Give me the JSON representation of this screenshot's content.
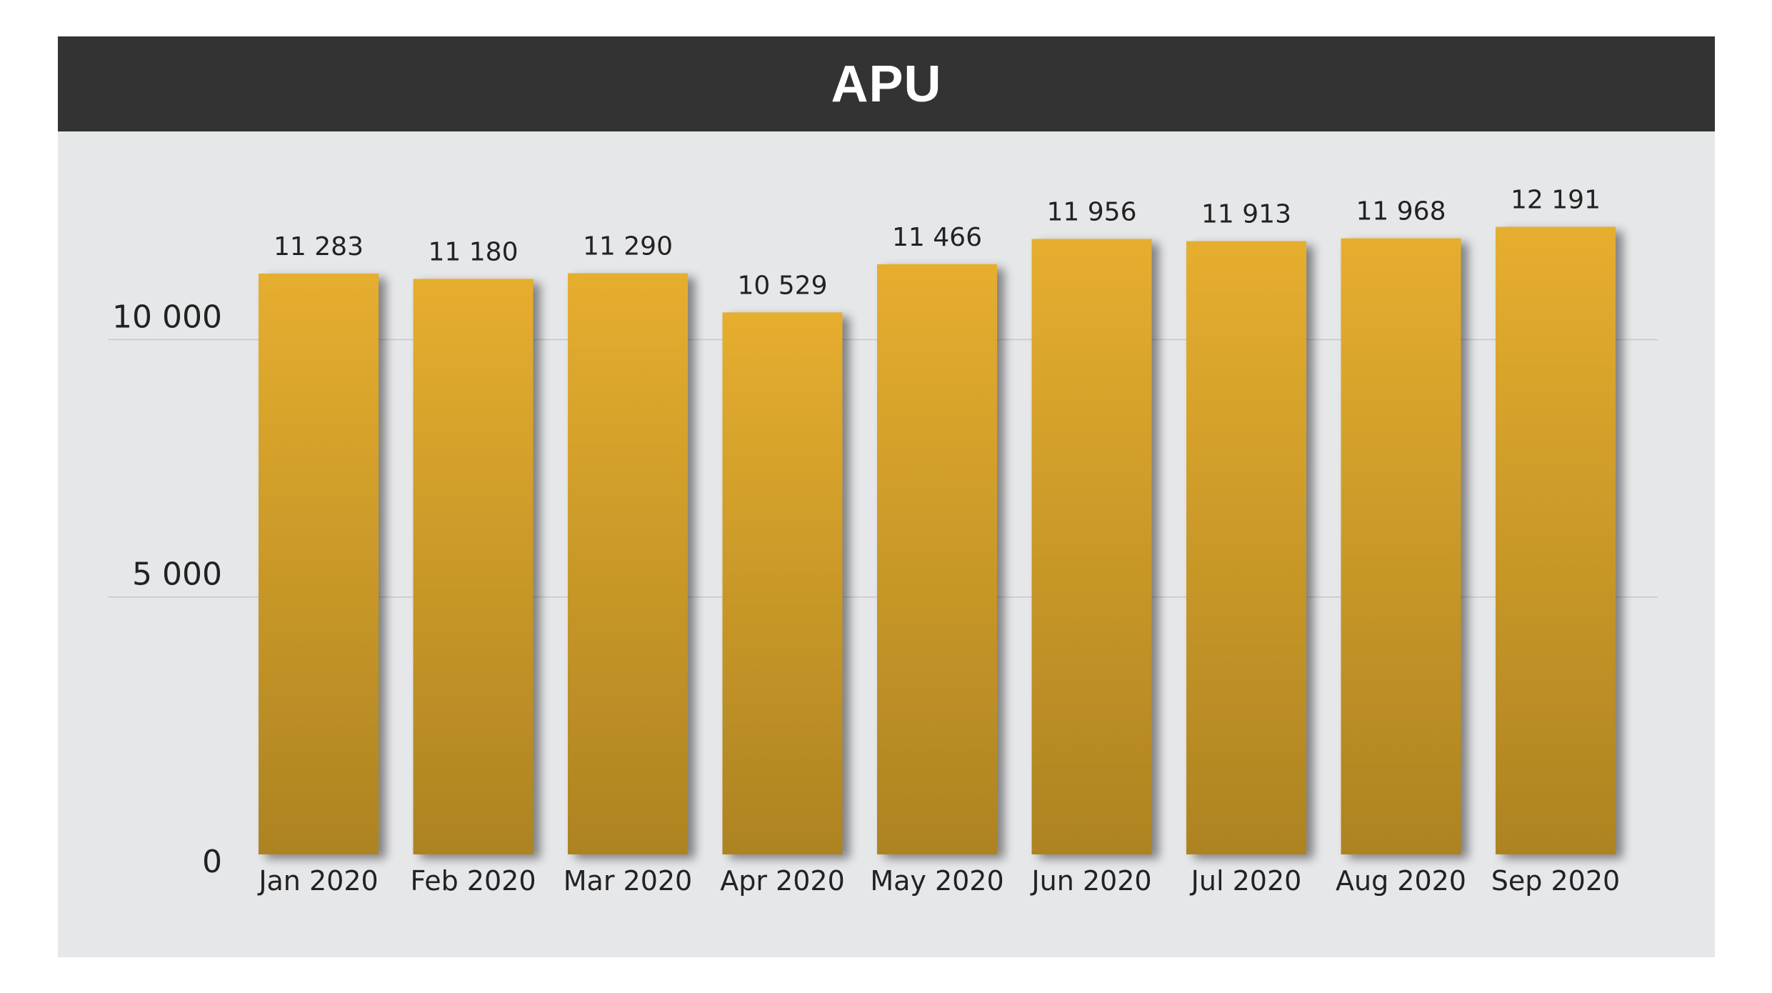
{
  "colors": {
    "header_background": "#333333",
    "panel_background": "#e6e7e9",
    "bar_top": "#e6ae2f",
    "bar_bottom": "#ad8322",
    "gridline": "#c8c8c8",
    "text": "#222222"
  },
  "chart_data": {
    "type": "bar",
    "title": "APU",
    "xlabel": "",
    "ylabel": "",
    "ylim": [
      0,
      12900
    ],
    "grid": true,
    "legend": "none",
    "yticks": [
      0,
      5000,
      10000
    ],
    "ytick_labels": [
      "0",
      "5 000",
      "10 000"
    ],
    "categories": [
      "Jan 2020",
      "Feb 2020",
      "Mar 2020",
      "Apr 2020",
      "May 2020",
      "Jun 2020",
      "Jul 2020",
      "Aug 2020",
      "Sep 2020"
    ],
    "values": [
      11283,
      11180,
      11290,
      10529,
      11466,
      11956,
      11913,
      11968,
      12191
    ],
    "data_labels": [
      "11 283",
      "11 180",
      "11 290",
      "10 529",
      "11 466",
      "11 956",
      "11 913",
      "11 968",
      "12 191"
    ]
  }
}
